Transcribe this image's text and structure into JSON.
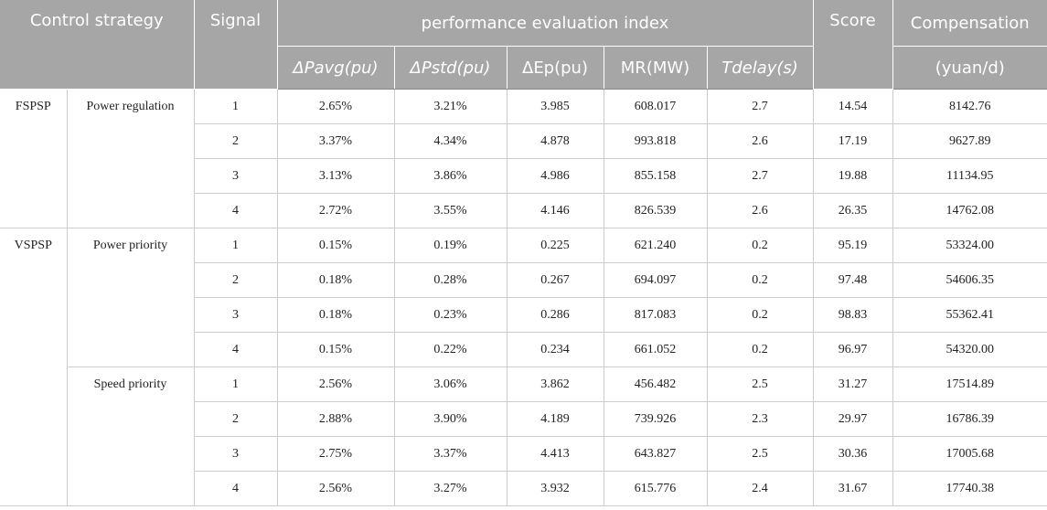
{
  "headers": {
    "control_strategy": "Control strategy",
    "signal": "Signal",
    "performance_group": "performance evaluation index",
    "score": "Score",
    "compensation": "Compensation",
    "compensation_unit": "(yuan/d)",
    "pavg": "ΔPavg(pu)",
    "pstd": "ΔPstd(pu)",
    "ep": "ΔEp(pu)",
    "mr": "MR(MW)",
    "tdelay": "Tdelay(s)"
  },
  "groups": [
    {
      "strategy": "FSPSP",
      "mode": "Power regulation",
      "rows": [
        {
          "signal": "1",
          "pavg": "2.65%",
          "pstd": "3.21%",
          "ep": "3.985",
          "mr": "608.017",
          "tdelay": "2.7",
          "score": "14.54",
          "compensation": "8142.76"
        },
        {
          "signal": "2",
          "pavg": "3.37%",
          "pstd": "4.34%",
          "ep": "4.878",
          "mr": "993.818",
          "tdelay": "2.6",
          "score": "17.19",
          "compensation": "9627.89"
        },
        {
          "signal": "3",
          "pavg": "3.13%",
          "pstd": "3.86%",
          "ep": "4.986",
          "mr": "855.158",
          "tdelay": "2.7",
          "score": "19.88",
          "compensation": "11134.95"
        },
        {
          "signal": "4",
          "pavg": "2.72%",
          "pstd": "3.55%",
          "ep": "4.146",
          "mr": "826.539",
          "tdelay": "2.6",
          "score": "26.35",
          "compensation": "14762.08"
        }
      ]
    },
    {
      "strategy": "VSPSP",
      "mode": "Power priority",
      "rows": [
        {
          "signal": "1",
          "pavg": "0.15%",
          "pstd": "0.19%",
          "ep": "0.225",
          "mr": "621.240",
          "tdelay": "0.2",
          "score": "95.19",
          "compensation": "53324.00"
        },
        {
          "signal": "2",
          "pavg": "0.18%",
          "pstd": "0.28%",
          "ep": "0.267",
          "mr": "694.097",
          "tdelay": "0.2",
          "score": "97.48",
          "compensation": "54606.35"
        },
        {
          "signal": "3",
          "pavg": "0.18%",
          "pstd": "0.23%",
          "ep": "0.286",
          "mr": "817.083",
          "tdelay": "0.2",
          "score": "98.83",
          "compensation": "55362.41"
        },
        {
          "signal": "4",
          "pavg": "0.15%",
          "pstd": "0.22%",
          "ep": "0.234",
          "mr": "661.052",
          "tdelay": "0.2",
          "score": "96.97",
          "compensation": "54320.00"
        }
      ]
    },
    {
      "strategy": "",
      "mode": "Speed priority",
      "rows": [
        {
          "signal": "1",
          "pavg": "2.56%",
          "pstd": "3.06%",
          "ep": "3.862",
          "mr": "456.482",
          "tdelay": "2.5",
          "score": "31.27",
          "compensation": "17514.89"
        },
        {
          "signal": "2",
          "pavg": "2.88%",
          "pstd": "3.90%",
          "ep": "4.189",
          "mr": "739.926",
          "tdelay": "2.3",
          "score": "29.97",
          "compensation": "16786.39"
        },
        {
          "signal": "3",
          "pavg": "2.75%",
          "pstd": "3.37%",
          "ep": "4.413",
          "mr": "643.827",
          "tdelay": "2.5",
          "score": "30.36",
          "compensation": "17005.68"
        },
        {
          "signal": "4",
          "pavg": "2.56%",
          "pstd": "3.27%",
          "ep": "3.932",
          "mr": "615.776",
          "tdelay": "2.4",
          "score": "31.67",
          "compensation": "17740.38"
        }
      ]
    }
  ]
}
